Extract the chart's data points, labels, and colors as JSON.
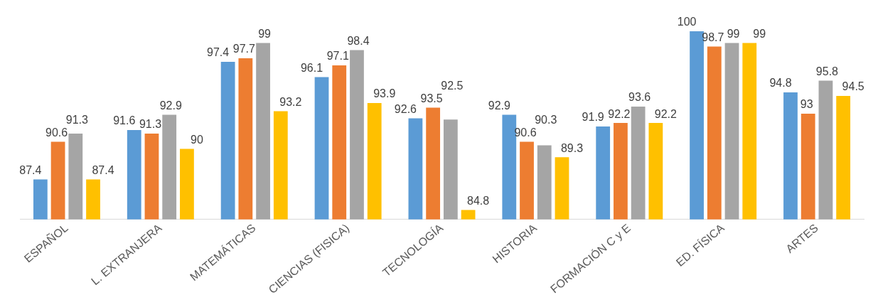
{
  "chart_data": {
    "type": "bar",
    "categories": [
      "ESPAÑOL",
      "L. EXTRANJERA",
      "MATEMÁTICAS",
      "CIENCIAS (FISICA)",
      "TECNOLOGÍA",
      "HISTORIA",
      "FORMACIÓN C y E",
      "ED. FÍSICA",
      "ARTES"
    ],
    "series": [
      {
        "color": "#5b9bd5",
        "values": [
          87.4,
          91.6,
          97.4,
          96.1,
          92.6,
          92.9,
          91.9,
          100,
          94.8
        ]
      },
      {
        "color": "#ed7d31",
        "values": [
          90.6,
          91.3,
          97.7,
          97.1,
          93.5,
          90.6,
          92.2,
          98.7,
          93
        ]
      },
      {
        "color": "#a5a5a5",
        "values": [
          91.3,
          92.9,
          99,
          98.4,
          92.5,
          90.3,
          93.6,
          99,
          95.8
        ]
      },
      {
        "color": "#ffc000",
        "values": [
          87.4,
          90,
          93.2,
          93.9,
          84.8,
          89.3,
          92.2,
          99,
          94.5
        ]
      }
    ],
    "tick_labels": "x",
    "grid": false,
    "legend": false,
    "data_labels": true
  }
}
